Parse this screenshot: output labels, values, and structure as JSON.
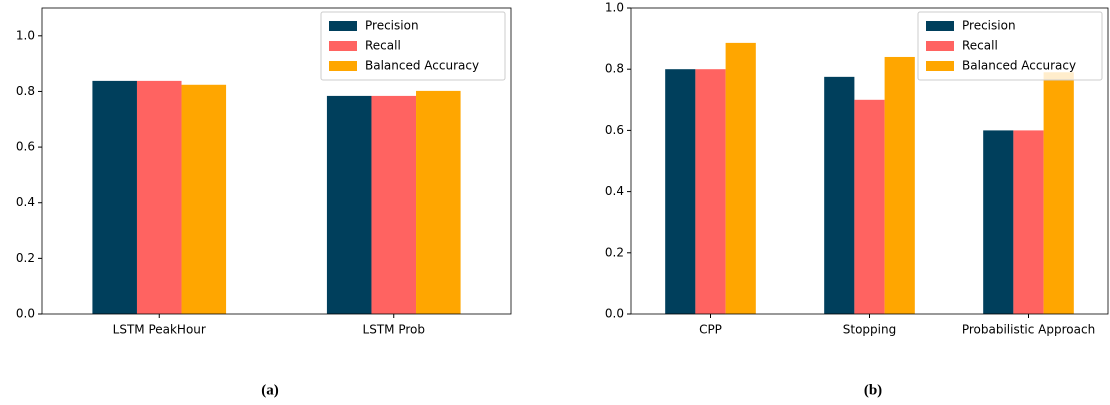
{
  "chart_data": [
    {
      "type": "bar",
      "caption": "(a)",
      "categories": [
        "LSTM PeakHour",
        "LSTM Prob"
      ],
      "series": [
        {
          "name": "Precision",
          "color": "#003f5c",
          "values": [
            0.838,
            0.784
          ]
        },
        {
          "name": "Recall",
          "color": "#ff6361",
          "values": [
            0.838,
            0.784
          ]
        },
        {
          "name": "Balanced Accuracy",
          "color": "#ffa600",
          "values": [
            0.824,
            0.802
          ]
        }
      ],
      "ylim": [
        0,
        1.1
      ],
      "yticks": [
        {
          "value": 0,
          "label": "0.0"
        },
        0.2,
        0.4,
        0.6,
        0.8,
        {
          "value": 1,
          "label": "1.0"
        }
      ],
      "legend": "upper right",
      "grid": false
    },
    {
      "type": "bar",
      "caption": "(b)",
      "categories": [
        "CPP",
        "Stopping",
        "Probabilistic Approach"
      ],
      "series": [
        {
          "name": "Precision",
          "color": "#003f5c",
          "values": [
            0.8,
            0.775,
            0.6
          ]
        },
        {
          "name": "Recall",
          "color": "#ff6361",
          "values": [
            0.8,
            0.7,
            0.6
          ]
        },
        {
          "name": "Balanced Accuracy",
          "color": "#ffa600",
          "values": [
            0.886,
            0.84,
            0.79
          ]
        }
      ],
      "ylim": [
        0,
        1.0
      ],
      "yticks": [
        {
          "value": 0,
          "label": "0.0"
        },
        0.2,
        0.4,
        0.6,
        0.8,
        {
          "value": 1,
          "label": "1.0"
        }
      ],
      "legend": "upper right",
      "grid": false
    }
  ]
}
